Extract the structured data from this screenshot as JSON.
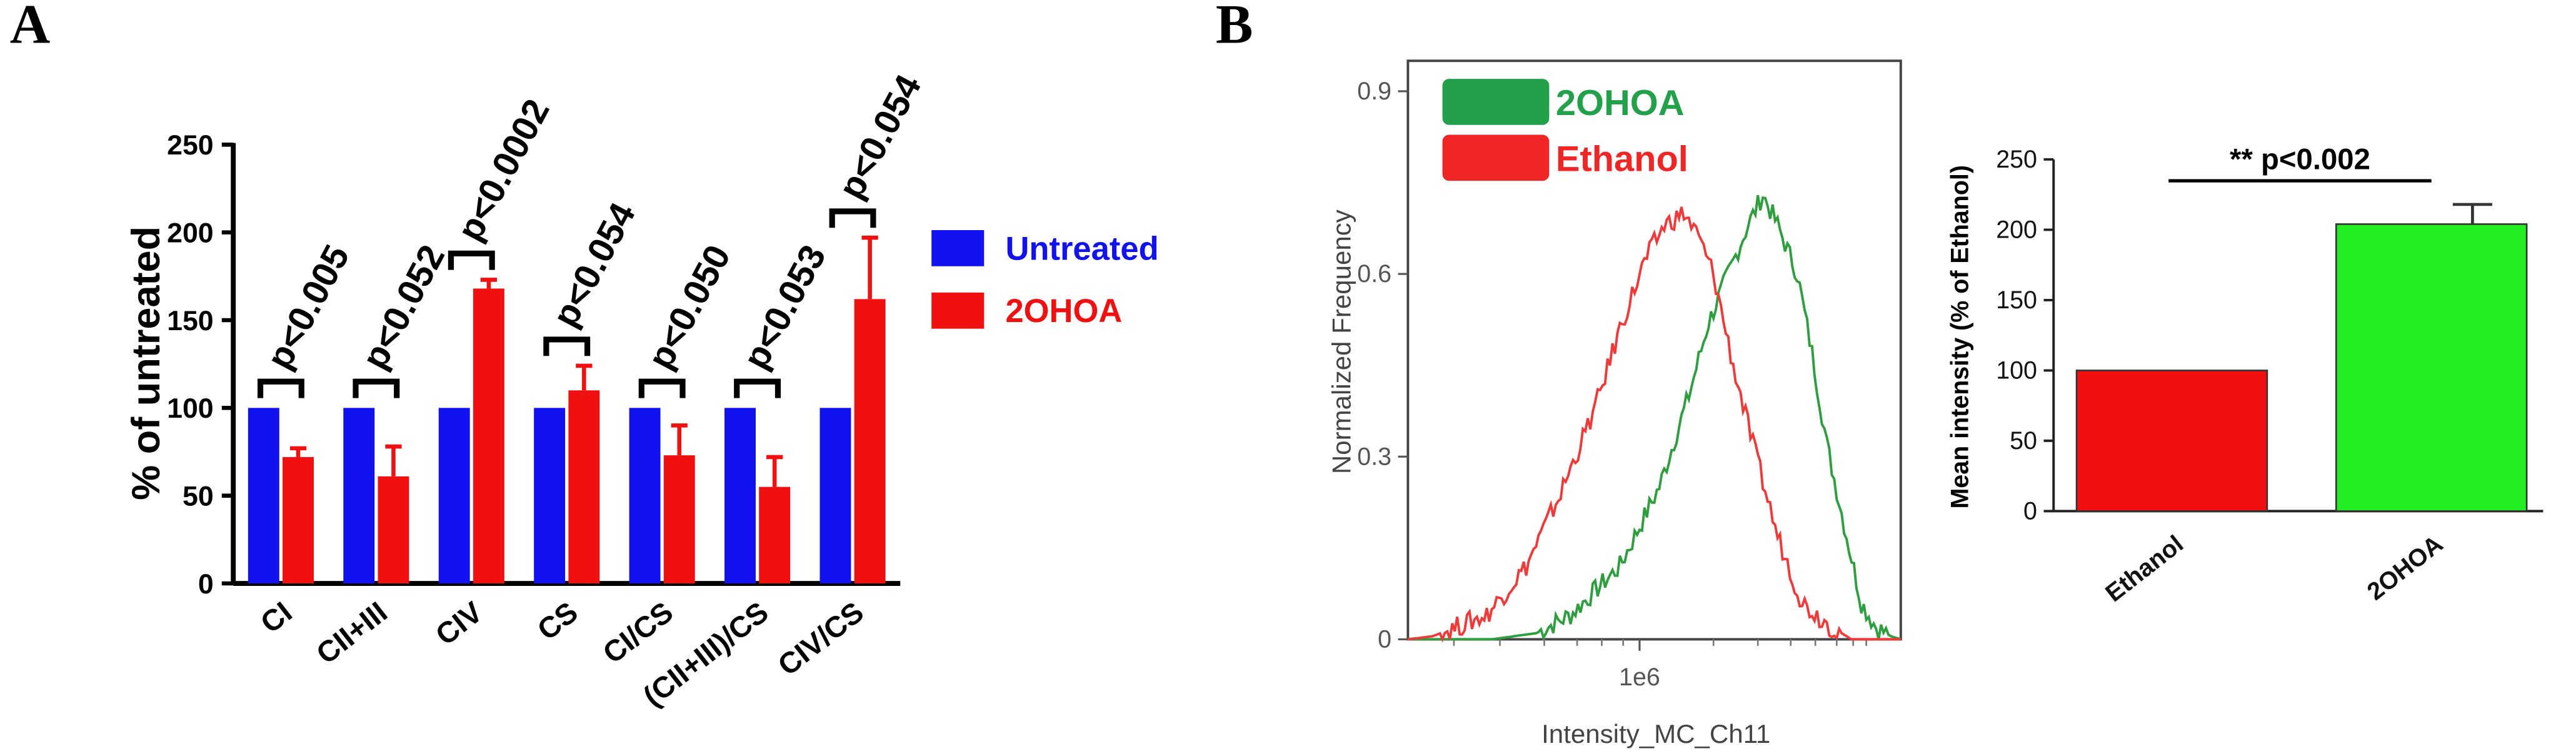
{
  "colors": {
    "untreated": "#1212f0",
    "treated": "#f01010",
    "hist_green": "#2e9e3e",
    "hist_red": "#f03a3a",
    "hist_legend_green": "#22a04a",
    "hist_legend_red": "#f02525",
    "bar_ethanol": "#f20f0f",
    "bar_2ohoa": "#22ee22"
  },
  "chart_data": [
    {
      "panel": "A",
      "type": "bar",
      "ylabel": "% of untreated",
      "ylim": [
        0,
        250
      ],
      "yticks": [
        "0",
        "50",
        "100",
        "150",
        "200",
        "250"
      ],
      "categories": [
        "CI",
        "CII+III",
        "CIV",
        "CS",
        "CI/CS",
        "(CII+III)/CS",
        "CIV/CS"
      ],
      "series": [
        {
          "name": "Untreated",
          "values": [
            100,
            100,
            100,
            100,
            100,
            100,
            100
          ],
          "errors": [
            0,
            0,
            0,
            0,
            0,
            0,
            0
          ]
        },
        {
          "name": "2OHOA",
          "values": [
            72,
            61,
            168,
            110,
            73,
            55,
            162
          ],
          "errors": [
            5,
            17,
            5,
            14,
            17,
            17,
            35
          ]
        }
      ],
      "pvalues": [
        "p<0.005",
        "p<0.052",
        "p<0.0002",
        "p<0.054",
        "p<0.050",
        "p<0.053",
        "p<0.054"
      ],
      "legend": [
        "Untreated",
        "2OHOA"
      ]
    },
    {
      "panel": "B",
      "type": "line",
      "xlabel": "Intensity_MC_Ch11",
      "ylabel": "Normalized Frequency",
      "yticks": [
        "0",
        "0.3",
        "0.6",
        "0.9"
      ],
      "ylim": [
        0,
        0.95
      ],
      "xtick": "1e6",
      "series": [
        {
          "name": "2OHOA",
          "x": [
            0,
            17,
            26,
            33,
            43,
            51,
            57,
            61,
            65,
            69,
            72,
            75,
            79,
            82,
            85,
            89,
            92,
            95,
            98,
            100
          ],
          "y": [
            0,
            0,
            0.01,
            0.04,
            0.12,
            0.25,
            0.4,
            0.52,
            0.6,
            0.68,
            0.73,
            0.68,
            0.6,
            0.47,
            0.32,
            0.17,
            0.06,
            0.02,
            0.005,
            0
          ]
        },
        {
          "name": "Ethanol",
          "x": [
            0,
            5,
            16,
            24,
            31,
            38,
            43,
            48,
            52,
            56,
            59,
            62,
            66,
            70,
            75,
            80,
            86,
            90,
            100
          ],
          "y": [
            0,
            0.005,
            0.04,
            0.12,
            0.24,
            0.38,
            0.51,
            0.62,
            0.68,
            0.7,
            0.66,
            0.6,
            0.45,
            0.32,
            0.17,
            0.06,
            0.02,
            0,
            0
          ]
        }
      ]
    },
    {
      "panel": "B",
      "type": "bar",
      "ylabel": "Mean intensity (% of Ethanol)",
      "ylim": [
        0,
        250
      ],
      "yticks": [
        "0",
        "50",
        "100",
        "150",
        "200",
        "250"
      ],
      "categories": [
        "Ethanol",
        "2OHOA"
      ],
      "values": [
        100,
        204
      ],
      "errors": [
        0,
        14
      ],
      "significance": "** p<0.002"
    }
  ]
}
